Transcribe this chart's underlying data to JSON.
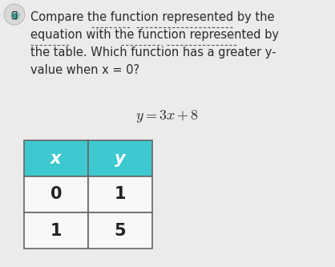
{
  "background_color": "#ebebeb",
  "lines": [
    "Compare the function represented by the",
    "equation with the function represented by",
    "the table. Which function has a greater y-",
    "value when x = 0?"
  ],
  "equation": "$y = 3x + 8$",
  "table_headers": [
    "x",
    "y"
  ],
  "table_data": [
    [
      "0",
      "1"
    ],
    [
      "1",
      "5"
    ]
  ],
  "header_bg_color": "#3ec8d0",
  "header_text_color": "#ffffff",
  "cell_bg_color": "#f8f8f8",
  "cell_text_color": "#222222",
  "table_border_color": "#666666",
  "font_size_text": 10.5,
  "font_size_equation": 13,
  "font_size_table_header": 15,
  "font_size_table_data": 15,
  "underline_words": {
    "line0": [
      [
        18,
        26
      ],
      [
        27,
        38
      ]
    ],
    "line1": [
      [
        0,
        8
      ],
      [
        18,
        26
      ],
      [
        27,
        38
      ]
    ],
    "line2": [],
    "line3": []
  },
  "text_color": "#2a2a2a",
  "underline_color": "#555555"
}
